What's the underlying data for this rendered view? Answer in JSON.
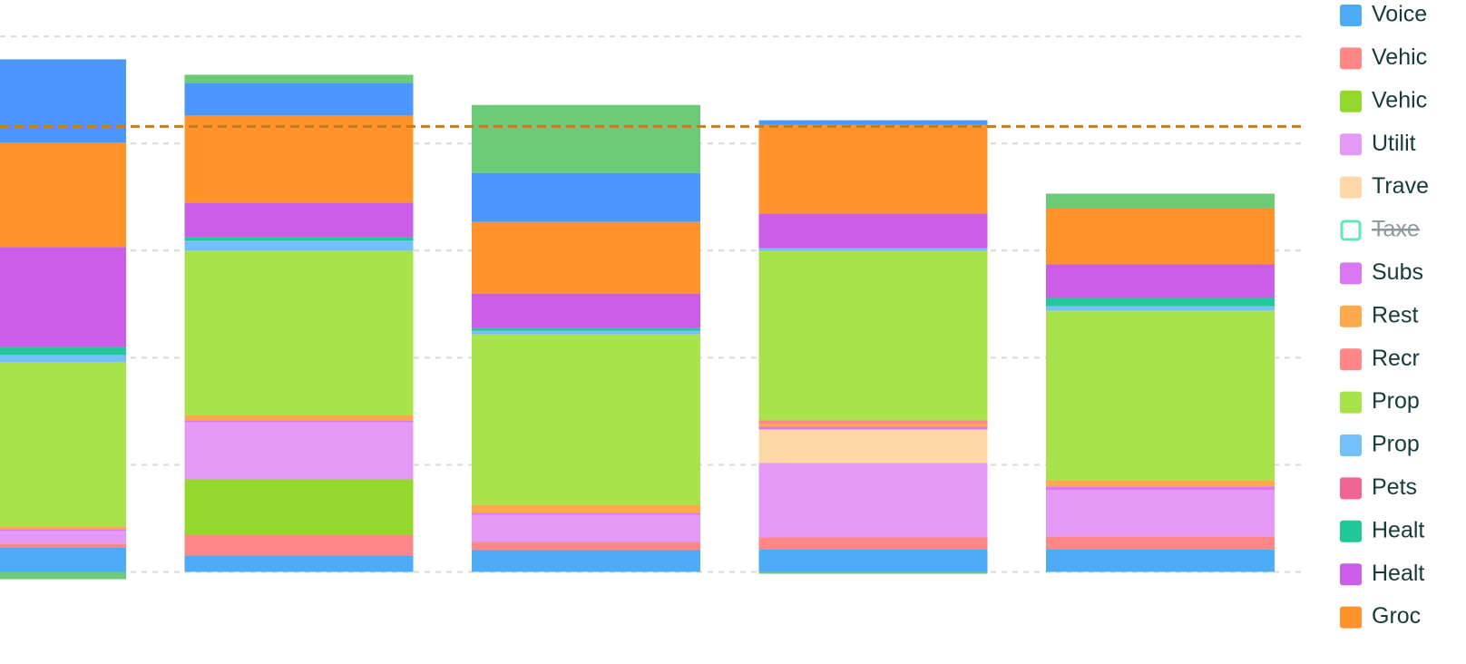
{
  "chart_data": {
    "type": "stacked_bar",
    "categories": [
      null,
      null,
      null,
      null,
      null
    ],
    "ylim": [
      -86,
      534
    ],
    "yticks": [
      0,
      100,
      200,
      300,
      400,
      500
    ],
    "grid": true,
    "legend": "right",
    "reference_line": {
      "value": 416,
      "color": "#c47f1b"
    },
    "series": [
      {
        "name": "Voice",
        "color": "#4dabf7",
        "values": [
          22.9,
          15.2,
          20.3,
          21.2,
          21.2
        ]
      },
      {
        "name": "Vehic",
        "color": "#ff8787",
        "values": [
          3.4,
          19.5,
          7.6,
          11.0,
          11.9
        ]
      },
      {
        "name": "Vehic",
        "color": "#94d82d",
        "values": [
          0,
          51.7,
          0,
          0,
          0
        ]
      },
      {
        "name": "Utilit",
        "color": "#e599f7",
        "values": [
          11.9,
          53.4,
          25.4,
          69.5,
          43.2
        ]
      },
      {
        "name": "Trave",
        "color": "#ffd8a8",
        "values": [
          0,
          0,
          0,
          31.3,
          0
        ]
      },
      {
        "name": "Taxe",
        "color": "#63e6be",
        "hidden": true,
        "values": [
          null,
          null,
          null,
          null,
          null
        ]
      },
      {
        "name": "Subs",
        "color": "#da77f2",
        "values": [
          1.7,
          1.7,
          1.7,
          2.5,
          3.4
        ]
      },
      {
        "name": "Rest",
        "color": "#ffa94d",
        "values": [
          2.5,
          5.1,
          7.6,
          2.5,
          5.9
        ]
      },
      {
        "name": "Recr",
        "color": "#ff8787",
        "values": [
          0,
          0,
          0,
          3.4,
          0
        ]
      },
      {
        "name": "Prop",
        "color": "#a9e34b",
        "values": [
          153.3,
          153.3,
          159.2,
          158.4,
          158.4
        ]
      },
      {
        "name": "Prop",
        "color": "#74c0fc",
        "values": [
          6.8,
          9.3,
          3.4,
          2.5,
          4.2
        ]
      },
      {
        "name": "Pets",
        "color": "#f06595",
        "values": [
          0,
          0,
          0,
          0,
          0
        ]
      },
      {
        "name": "Healt",
        "color": "#20c997",
        "values": [
          7.6,
          3.4,
          2.5,
          0,
          7.6
        ]
      },
      {
        "name": "Healt",
        "color": "#cc5de8",
        "values": [
          93.2,
          32.2,
          32.2,
          32.2,
          31.3
        ]
      },
      {
        "name": "Groc",
        "color": "#ff922b",
        "values": [
          97.4,
          81.3,
          66.9,
          83.0,
          52.5
        ]
      },
      {
        "name": null,
        "color": "#4c97fd",
        "values": [
          77.9,
          30.5,
          45.7,
          4.2,
          0
        ]
      },
      {
        "name": null,
        "color": "#6bcb77",
        "values": [
          -6.8,
          7.6,
          63.5,
          -1.7,
          13.6
        ]
      }
    ]
  }
}
